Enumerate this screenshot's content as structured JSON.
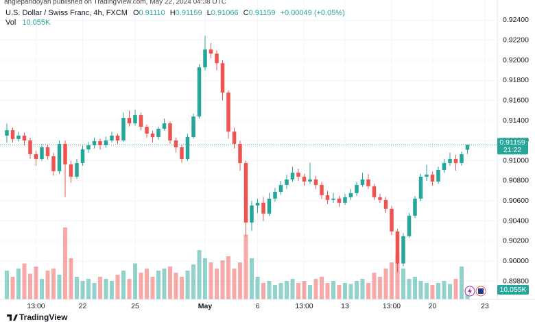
{
  "chart_data": {
    "type": "candlestick",
    "attribution": "anglepandoyan published on TradingView.com, May 22, 2024 04:38 UTC",
    "title": "U.S. Dollar / Swiss Franc, 4h, FXCM",
    "legend": {
      "o_label": "O",
      "open": "0.91110",
      "h_label": "H",
      "high": "0.91159",
      "l_label": "L",
      "low": "0.91066",
      "c_label": "C",
      "close": "0.91159",
      "change": "+0.00049 (+0.05%)"
    },
    "vol_label": "Vol",
    "volume_last_label": "10.055K",
    "countdown": "21:22",
    "brand": "TradingView",
    "categories": [
      null,
      null,
      null,
      null,
      null,
      "13:00",
      null,
      null,
      null,
      null,
      null,
      null,
      null,
      "22",
      null,
      null,
      null,
      null,
      null,
      null,
      null,
      null,
      "25",
      null,
      null,
      null,
      null,
      null,
      null,
      null,
      null,
      null,
      null,
      null,
      "May",
      null,
      null,
      null,
      null,
      null,
      null,
      null,
      null,
      "6",
      null,
      null,
      null,
      null,
      null,
      null,
      null,
      "13:00",
      null,
      null,
      null,
      null,
      null,
      null,
      "13",
      null,
      null,
      null,
      null,
      null,
      null,
      null,
      "13:00",
      null,
      null,
      null,
      null,
      null,
      null,
      "20",
      null,
      null,
      null,
      null,
      null,
      null,
      null,
      null,
      "23",
      null
    ],
    "ohlc": [
      [
        0.9125,
        0.9137,
        0.9118,
        0.91304
      ],
      [
        0.91304,
        0.9133,
        0.9118,
        0.91216
      ],
      [
        0.91216,
        0.9129,
        0.9119,
        0.9125
      ],
      [
        0.9125,
        0.9128,
        0.9115,
        0.91202
      ],
      [
        0.91202,
        0.9123,
        0.9102,
        0.91066
      ],
      [
        0.91066,
        0.911,
        0.9095,
        0.91018
      ],
      [
        0.91018,
        0.9117,
        0.91,
        0.91134
      ],
      [
        0.91134,
        0.9116,
        0.9101,
        0.91045
      ],
      [
        0.91045,
        0.9108,
        0.9085,
        0.90896
      ],
      [
        0.90896,
        0.912,
        0.9087,
        0.91168
      ],
      [
        0.91168,
        0.912,
        0.90638,
        0.90964
      ],
      [
        0.90964,
        0.91,
        0.9078,
        0.90841
      ],
      [
        0.90841,
        0.9102,
        0.9082,
        0.90977
      ],
      [
        0.90977,
        0.9115,
        0.9095,
        0.91113
      ],
      [
        0.91113,
        0.9119,
        0.9108,
        0.91154
      ],
      [
        0.91154,
        0.9123,
        0.9112,
        0.91195
      ],
      [
        0.91195,
        0.9122,
        0.9111,
        0.91154
      ],
      [
        0.91154,
        0.9124,
        0.9113,
        0.91202
      ],
      [
        0.91202,
        0.9129,
        0.9118,
        0.9125
      ],
      [
        0.9125,
        0.9127,
        0.9117,
        0.91202
      ],
      [
        0.91202,
        0.9148,
        0.9119,
        0.91427
      ],
      [
        0.91427,
        0.915,
        0.9134,
        0.91372
      ],
      [
        0.91372,
        0.9151,
        0.9135,
        0.91454
      ],
      [
        0.91454,
        0.9148,
        0.913,
        0.91338
      ],
      [
        0.91338,
        0.9136,
        0.9123,
        0.9127
      ],
      [
        0.9127,
        0.913,
        0.9118,
        0.91236
      ],
      [
        0.91236,
        0.9134,
        0.9121,
        0.91318
      ],
      [
        0.91318,
        0.9142,
        0.913,
        0.91372
      ],
      [
        0.91372,
        0.9139,
        0.9117,
        0.91202
      ],
      [
        0.91202,
        0.9123,
        0.9108,
        0.91134
      ],
      [
        0.91134,
        0.9116,
        0.9098,
        0.91018
      ],
      [
        0.91018,
        0.9127,
        0.91,
        0.91236
      ],
      [
        0.91236,
        0.9147,
        0.9122,
        0.9144
      ],
      [
        0.9144,
        0.9196,
        0.9142,
        0.9193
      ],
      [
        0.9193,
        0.92243,
        0.919,
        0.92107
      ],
      [
        0.92107,
        0.9217,
        0.9202,
        0.92066
      ],
      [
        0.92066,
        0.921,
        0.919,
        0.91971
      ],
      [
        0.91971,
        0.92,
        0.916,
        0.91678
      ],
      [
        0.91678,
        0.917,
        0.9122,
        0.9129
      ],
      [
        0.9129,
        0.9133,
        0.9112,
        0.91168
      ],
      [
        0.91168,
        0.912,
        0.909,
        0.90977
      ],
      [
        0.90977,
        0.91,
        0.9025,
        0.90385
      ],
      [
        0.90385,
        0.906,
        0.903,
        0.90555
      ],
      [
        0.90555,
        0.9062,
        0.9048,
        0.90582
      ],
      [
        0.90582,
        0.9064,
        0.904,
        0.90474
      ],
      [
        0.90474,
        0.9068,
        0.9045,
        0.90623
      ],
      [
        0.90623,
        0.9073,
        0.9059,
        0.90691
      ],
      [
        0.90691,
        0.908,
        0.9066,
        0.90759
      ],
      [
        0.90759,
        0.9086,
        0.9072,
        0.90814
      ],
      [
        0.90814,
        0.9094,
        0.9079,
        0.90882
      ],
      [
        0.90882,
        0.9092,
        0.908,
        0.90841
      ],
      [
        0.90841,
        0.9087,
        0.9075,
        0.90793
      ],
      [
        0.90793,
        0.9098,
        0.9077,
        0.90814
      ],
      [
        0.90814,
        0.9085,
        0.9072,
        0.90759
      ],
      [
        0.90759,
        0.9079,
        0.9062,
        0.90657
      ],
      [
        0.90657,
        0.907,
        0.9057,
        0.9061
      ],
      [
        0.9061,
        0.9068,
        0.9058,
        0.90623
      ],
      [
        0.90623,
        0.9065,
        0.9054,
        0.90582
      ],
      [
        0.90582,
        0.9067,
        0.9056,
        0.90637
      ],
      [
        0.90637,
        0.9072,
        0.9061,
        0.90678
      ],
      [
        0.90678,
        0.9079,
        0.9065,
        0.90759
      ],
      [
        0.90759,
        0.9088,
        0.9074,
        0.90814
      ],
      [
        0.90814,
        0.9087,
        0.9072,
        0.90746
      ],
      [
        0.90746,
        0.9077,
        0.9061,
        0.90637
      ],
      [
        0.90637,
        0.9067,
        0.9058,
        0.9061
      ],
      [
        0.9061,
        0.9064,
        0.9048,
        0.90521
      ],
      [
        0.90521,
        0.9055,
        0.9026,
        0.90297
      ],
      [
        0.90297,
        0.9032,
        0.89889,
        0.89977
      ],
      [
        0.89977,
        0.9028,
        0.8995,
        0.90249
      ],
      [
        0.90249,
        0.9048,
        0.9023,
        0.90453
      ],
      [
        0.90453,
        0.9065,
        0.9043,
        0.90623
      ],
      [
        0.90623,
        0.9087,
        0.906,
        0.90841
      ],
      [
        0.90841,
        0.9096,
        0.908,
        0.90862
      ],
      [
        0.90862,
        0.9089,
        0.9075,
        0.90793
      ],
      [
        0.90793,
        0.9094,
        0.9077,
        0.90909
      ],
      [
        0.90909,
        0.9102,
        0.9088,
        0.90977
      ],
      [
        0.90977,
        0.9108,
        0.9095,
        0.91018
      ],
      [
        0.91018,
        0.9106,
        0.909,
        0.90977
      ],
      [
        0.90977,
        0.9109,
        0.9095,
        0.91066
      ],
      [
        0.9111,
        0.91159,
        0.91066,
        0.91159
      ],
      null,
      null,
      null,
      null
    ],
    "volumes": [
      28000,
      22000,
      30000,
      35000,
      25000,
      32000,
      20000,
      28000,
      30000,
      24000,
      70000,
      40000,
      22000,
      18000,
      20000,
      16000,
      22000,
      20000,
      18000,
      24000,
      28000,
      20000,
      35000,
      26000,
      30000,
      22000,
      28000,
      30000,
      32000,
      26000,
      22000,
      28000,
      34000,
      48000,
      40000,
      36000,
      30000,
      38000,
      42000,
      30000,
      36000,
      63000,
      40000,
      22000,
      16000,
      18000,
      14000,
      16000,
      18000,
      20000,
      16000,
      18000,
      14000,
      20000,
      22000,
      16000,
      18000,
      14000,
      16000,
      15000,
      18000,
      20000,
      16000,
      26000,
      22000,
      30000,
      36000,
      43000,
      30000,
      20000,
      22000,
      18000,
      16000,
      14000,
      16000,
      18000,
      15000,
      20000,
      32000,
      10055,
      null,
      null,
      null,
      null
    ],
    "ylim": [
      0.8962,
      0.926
    ],
    "yticks": [
      {
        "value": 0.898,
        "label": "0.89800"
      },
      {
        "value": 0.9,
        "label": "0.90000"
      },
      {
        "value": 0.902,
        "label": "0.90200"
      },
      {
        "value": 0.904,
        "label": "0.90400"
      },
      {
        "value": 0.906,
        "label": "0.90600"
      },
      {
        "value": 0.908,
        "label": "0.90800"
      },
      {
        "value": 0.91,
        "label": "0.91000"
      },
      {
        "value": 0.912,
        "label": "0.91200"
      },
      {
        "value": 0.914,
        "label": "0.91400"
      },
      {
        "value": 0.916,
        "label": "0.91600"
      },
      {
        "value": 0.918,
        "label": "0.91800"
      },
      {
        "value": 0.92,
        "label": "0.92000"
      },
      {
        "value": 0.922,
        "label": "0.92200"
      },
      {
        "value": 0.924,
        "label": "0.92400"
      }
    ],
    "vlim": [
      0,
      100000
    ],
    "up_color": "#26a69a",
    "down_color": "#ef5350",
    "grid": true
  }
}
